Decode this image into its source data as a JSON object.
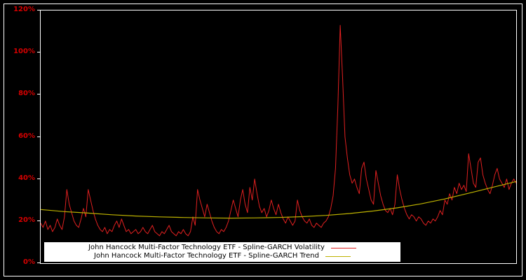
{
  "colors": {
    "background": "#000000",
    "frame": "#ffffff",
    "axis_label": "#d40000",
    "volatility_line": "#e02020",
    "trend_line": "#bdb200",
    "legend_background": "#ffffff",
    "legend_text": "#000000"
  },
  "chart_data": {
    "type": "line",
    "grid": false,
    "legend_position": "bottom-center",
    "ylim": [
      0,
      120
    ],
    "yticks": [
      0,
      20,
      40,
      60,
      80,
      100,
      120
    ],
    "ytick_labels": [
      "0%",
      "20%",
      "40%",
      "60%",
      "80%",
      "100%",
      "120%"
    ],
    "series": [
      {
        "name": "John Hancock Multi-Factor Technology ETF - Spline-GARCH Volatility",
        "data_name": "volatility-series-line",
        "color": "#e02020",
        "width": 1,
        "x_start": 0,
        "x_step": 0.5,
        "values": [
          19,
          17,
          20,
          16,
          18,
          15,
          17,
          21,
          18,
          16,
          22,
          35,
          28,
          24,
          20,
          18,
          17,
          21,
          26,
          22,
          35,
          30,
          25,
          21,
          18,
          16,
          15,
          17,
          14,
          16,
          15,
          18,
          20,
          17,
          21,
          18,
          15,
          16,
          14,
          15,
          16,
          14,
          15,
          17,
          15,
          14,
          16,
          18,
          15,
          14,
          13,
          15,
          14,
          16,
          18,
          15,
          14,
          13,
          15,
          14,
          16,
          14,
          13,
          15,
          22,
          18,
          35,
          30,
          26,
          22,
          28,
          24,
          20,
          17,
          15,
          14,
          16,
          15,
          17,
          20,
          25,
          30,
          26,
          22,
          30,
          35,
          28,
          24,
          36,
          30,
          40,
          33,
          27,
          24,
          26,
          22,
          25,
          30,
          26,
          23,
          28,
          24,
          21,
          19,
          22,
          20,
          18,
          20,
          30,
          25,
          22,
          20,
          19,
          21,
          18,
          17,
          19,
          18,
          17,
          19,
          20,
          22,
          26,
          32,
          45,
          75,
          113,
          88,
          60,
          50,
          42,
          38,
          40,
          36,
          33,
          45,
          48,
          40,
          35,
          30,
          28,
          44,
          38,
          32,
          28,
          25,
          24,
          26,
          23,
          28,
          42,
          35,
          30,
          26,
          23,
          21,
          23,
          22,
          20,
          22,
          21,
          19,
          18,
          20,
          19,
          21,
          20,
          22,
          25,
          23,
          30,
          28,
          33,
          30,
          36,
          33,
          38,
          35,
          37,
          34,
          52,
          45,
          38,
          36,
          48,
          50,
          42,
          38,
          35,
          33,
          37,
          42,
          45,
          40,
          38,
          36,
          40,
          35,
          38,
          40,
          38
        ]
      },
      {
        "name": "John Hancock Multi-Factor Technology ETF - Spline-GARCH Trend",
        "data_name": "trend-series-line",
        "color": "#bdb200",
        "width": 1.2,
        "x_start": 0,
        "x_step": 5,
        "values": [
          25.5,
          24.5,
          23.8,
          23.0,
          22.4,
          22.0,
          21.7,
          21.5,
          21.4,
          21.5,
          21.7,
          22.1,
          22.7,
          23.6,
          24.8,
          26.3,
          28.2,
          30.5,
          33.2,
          36.0,
          38.8
        ]
      }
    ]
  }
}
